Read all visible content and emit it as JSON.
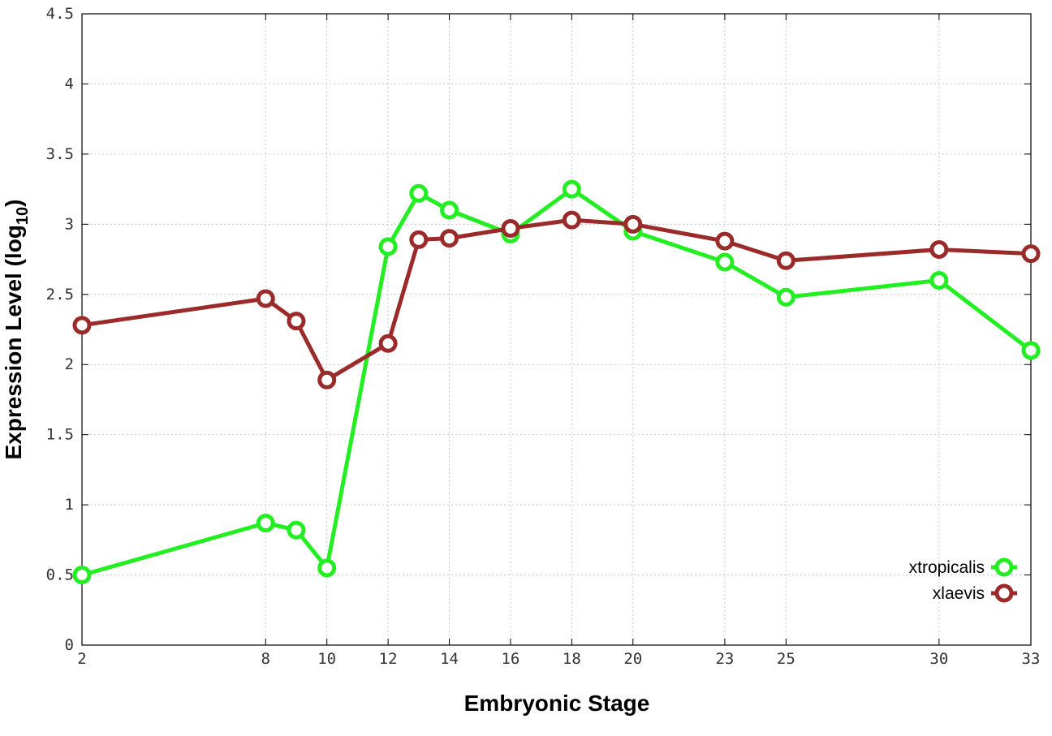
{
  "chart_data": {
    "type": "line",
    "xlabel": "Embryonic Stage",
    "ylabel": "Expression Level (log",
    "ylabel_subscript": "10",
    "ylabel_close": ")",
    "ylim": [
      0,
      4.5
    ],
    "xlim": [
      2,
      33
    ],
    "grid": true,
    "legend_position": "bottom-right",
    "x_ticks": [
      "2",
      "8",
      "10",
      "12",
      "14",
      "16",
      "18",
      "20",
      "23",
      "25",
      "30",
      "33"
    ],
    "x_tick_values": [
      2,
      8,
      10,
      12,
      14,
      16,
      18,
      20,
      23,
      25,
      30,
      33
    ],
    "y_ticks": [
      "0",
      "0.5",
      "1",
      "1.5",
      "2",
      "2.5",
      "3",
      "3.5",
      "4",
      "4.5"
    ],
    "y_tick_values": [
      0,
      0.5,
      1,
      1.5,
      2,
      2.5,
      3,
      3.5,
      4,
      4.5
    ],
    "series": [
      {
        "name": "xtropicalis",
        "color": "#22ee22",
        "x": [
          2,
          8,
          9,
          10,
          12,
          13,
          14,
          16,
          18,
          20,
          23,
          25,
          30,
          33
        ],
        "y": [
          0.5,
          0.87,
          0.82,
          0.55,
          2.84,
          3.22,
          3.1,
          2.93,
          3.25,
          2.95,
          2.73,
          2.48,
          2.6,
          2.1
        ]
      },
      {
        "name": "xlaevis",
        "color": "#9b2b2b",
        "x": [
          2,
          8,
          9,
          10,
          12,
          13,
          14,
          16,
          18,
          20,
          23,
          25,
          30,
          33
        ],
        "y": [
          2.28,
          2.47,
          2.31,
          1.89,
          2.15,
          2.89,
          2.9,
          2.97,
          3.03,
          3.0,
          2.88,
          2.74,
          2.82,
          2.79
        ]
      }
    ]
  }
}
